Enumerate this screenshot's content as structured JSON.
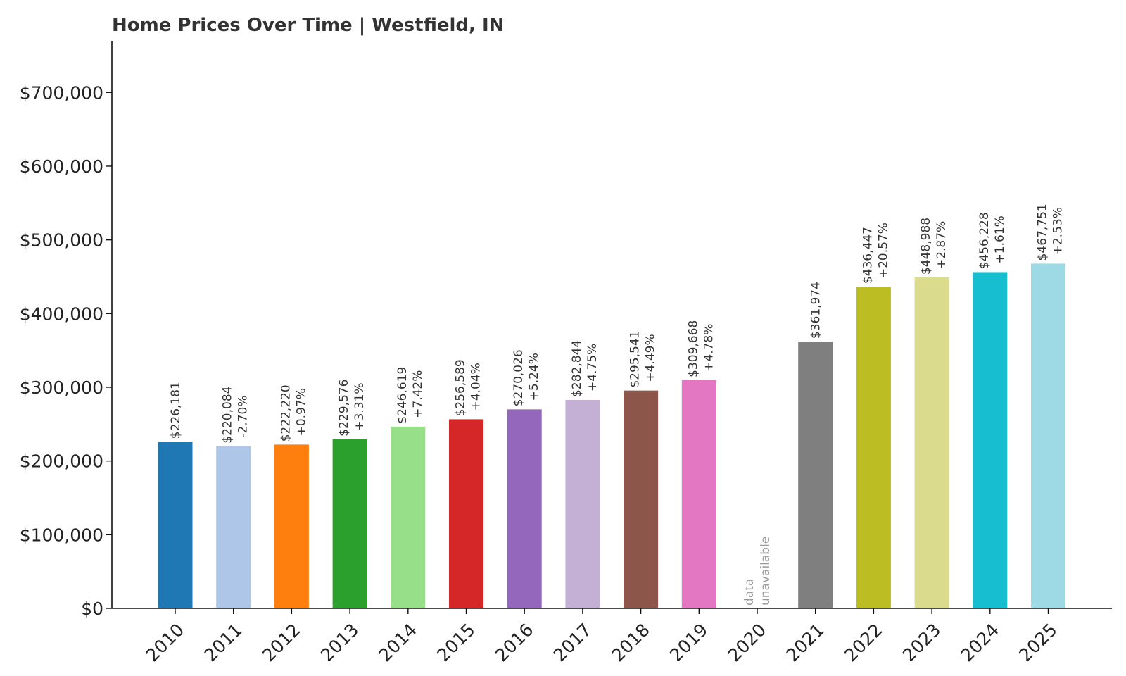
{
  "chart_data": {
    "type": "bar",
    "title": "Home Prices Over Time | Westfield, IN",
    "xlabel": "",
    "ylabel": "",
    "ylim": [
      0,
      770000
    ],
    "yticks": [
      0,
      100000,
      200000,
      300000,
      400000,
      500000,
      600000,
      700000
    ],
    "ytick_labels": [
      "$0",
      "$100,000",
      "$200,000",
      "$300,000",
      "$400,000",
      "$500,000",
      "$600,000",
      "$700,000"
    ],
    "categories": [
      "2010",
      "2011",
      "2012",
      "2013",
      "2014",
      "2015",
      "2016",
      "2017",
      "2018",
      "2019",
      "2020",
      "2021",
      "2022",
      "2023",
      "2024",
      "2025"
    ],
    "values": [
      226181,
      220084,
      222220,
      229576,
      246619,
      256589,
      270026,
      282844,
      295541,
      309668,
      null,
      361974,
      436447,
      448988,
      456228,
      467751
    ],
    "value_labels": [
      "$226,181",
      "$220,084",
      "$222,220",
      "$229,576",
      "$246,619",
      "$256,589",
      "$270,026",
      "$282,844",
      "$295,541",
      "$309,668",
      "",
      "$361,974",
      "$436,447",
      "$448,988",
      "$456,228",
      "$467,751"
    ],
    "change_labels": [
      "",
      "-2.70%",
      "+0.97%",
      "+3.31%",
      "+7.42%",
      "+4.04%",
      "+5.24%",
      "+4.75%",
      "+4.49%",
      "+4.78%",
      "",
      "",
      "+20.57%",
      "+2.87%",
      "+1.61%",
      "+2.53%"
    ],
    "missing_label": [
      "data",
      "unavailable"
    ],
    "colors": [
      "#1f77b4",
      "#aec7e8",
      "#ff7f0e",
      "#2ca02c",
      "#98df8a",
      "#d62728",
      "#9467bd",
      "#c5b0d5",
      "#8c564b",
      "#e377c2",
      "#f7b6d2",
      "#7f7f7f",
      "#bcbd22",
      "#dbdb8d",
      "#17becf",
      "#9edae5"
    ],
    "grid": false,
    "legend": "none"
  }
}
